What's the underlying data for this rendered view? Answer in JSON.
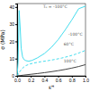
{
  "chart_data": {
    "type": "line",
    "annotations": [
      "T₀ = -100°C",
      "60°C",
      "-100°C",
      "100°C"
    ],
    "x_label": "εᴴ",
    "y_label": "σ (MPa)",
    "xlim": [
      0,
      1.0
    ],
    "ylim": [
      0,
      42
    ],
    "xticks": [
      {
        "value": 0.0,
        "label": "0.0"
      },
      0.2,
      0.4,
      0.6,
      0.8,
      {
        "value": 1.0,
        "label": "1.0"
      }
    ],
    "yticks": [
      0,
      10,
      20,
      30,
      40
    ],
    "grid": false,
    "series": [
      {
        "color": "#44ddee",
        "line_style": "solid",
        "x": [
          0.0,
          0.015,
          0.03,
          0.045,
          0.06,
          0.08,
          0.1,
          0.13,
          0.17,
          0.22,
          0.3,
          0.4,
          0.5,
          0.6,
          0.7,
          0.8,
          0.9,
          1.0
        ],
        "values": [
          0.0,
          8.0,
          38.0,
          28.0,
          16.0,
          11.0,
          9.5,
          8.8,
          8.5,
          9.0,
          10.5,
          13.0,
          16.5,
          21.0,
          26.5,
          32.5,
          39.0,
          40.5
        ]
      },
      {
        "color": "#44ddee",
        "line_style": "dashed",
        "x": [
          0.0,
          0.04,
          0.08,
          0.12,
          0.18,
          0.25,
          0.35,
          0.45,
          0.55,
          0.65,
          0.75,
          0.85,
          0.95,
          1.0
        ],
        "values": [
          0.0,
          2.5,
          4.5,
          5.8,
          6.8,
          7.5,
          8.2,
          8.8,
          9.5,
          10.3,
          11.3,
          12.5,
          14.0,
          14.8
        ]
      },
      {
        "color": "#444444",
        "line_style": "solid",
        "x": [
          0.0,
          0.05,
          0.1,
          0.2,
          0.3,
          0.4,
          0.5,
          0.6,
          0.7,
          0.8,
          0.9,
          1.0
        ],
        "values": [
          0.0,
          0.2,
          0.45,
          0.9,
          1.35,
          1.85,
          2.4,
          3.0,
          3.7,
          4.5,
          5.4,
          6.5
        ]
      }
    ]
  }
}
